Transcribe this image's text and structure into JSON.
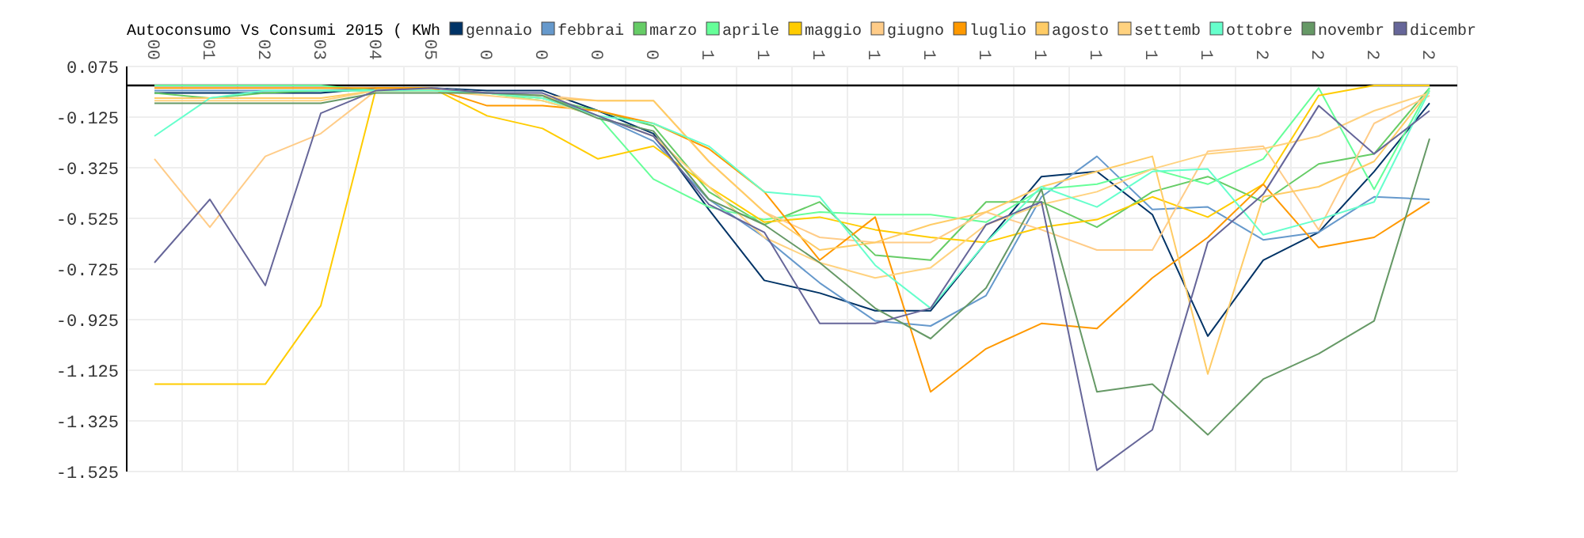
{
  "chart_data": {
    "type": "line",
    "title": "Autoconsumo Vs Consumi 2015 ( KWh",
    "categories": [
      "00",
      "01",
      "02",
      "03",
      "04",
      "05",
      "0",
      "0",
      "0",
      "0",
      "1",
      "1",
      "1",
      "1",
      "1",
      "1",
      "1",
      "1",
      "1",
      "1",
      "2",
      "2",
      "2",
      "2"
    ],
    "ylim": [
      -1.525,
      0.075
    ],
    "yticks": [
      0.075,
      -0.125,
      -0.325,
      -0.525,
      -0.725,
      -0.925,
      -1.125,
      -1.325,
      -1.525
    ],
    "grid": true,
    "legend": "top",
    "marker": "none",
    "line_style": "solid",
    "ref_lines": [
      {
        "axis": "y",
        "value": 0,
        "color": "#000000"
      }
    ],
    "series": [
      {
        "name": "gennaio",
        "color": "#003366",
        "values": [
          -0.03,
          -0.03,
          -0.03,
          -0.03,
          -0.01,
          -0.01,
          -0.02,
          -0.02,
          -0.1,
          -0.19,
          -0.49,
          -0.77,
          -0.82,
          -0.89,
          -0.89,
          -0.62,
          -0.36,
          -0.34,
          -0.51,
          -0.99,
          -0.69,
          -0.58,
          -0.34,
          -0.07
        ]
      },
      {
        "name": "febbrai",
        "color": "#6699cc",
        "values": [
          -0.02,
          -0.02,
          -0.02,
          -0.02,
          -0.01,
          -0.01,
          -0.03,
          -0.04,
          -0.12,
          -0.22,
          -0.45,
          -0.6,
          -0.78,
          -0.93,
          -0.95,
          -0.83,
          -0.44,
          -0.28,
          -0.49,
          -0.48,
          -0.61,
          -0.58,
          -0.44,
          -0.45
        ]
      },
      {
        "name": "marzo",
        "color": "#66cc66",
        "values": [
          -0.03,
          -0.05,
          -0.03,
          -0.02,
          -0.02,
          -0.02,
          -0.03,
          -0.05,
          -0.1,
          -0.16,
          -0.42,
          -0.55,
          -0.46,
          -0.67,
          -0.69,
          -0.46,
          -0.46,
          -0.56,
          -0.42,
          -0.36,
          -0.46,
          -0.31,
          -0.27,
          -0.01
        ]
      },
      {
        "name": "aprile",
        "color": "#66ff99",
        "values": [
          0,
          0,
          0,
          0,
          -0.02,
          -0.02,
          -0.03,
          -0.06,
          -0.12,
          -0.37,
          -0.48,
          -0.53,
          -0.5,
          -0.51,
          -0.51,
          -0.54,
          -0.41,
          -0.39,
          -0.33,
          -0.39,
          -0.29,
          -0.01,
          -0.41,
          -0.01
        ]
      },
      {
        "name": "maggio",
        "color": "#ffcc00",
        "values": [
          -1.18,
          -1.18,
          -1.18,
          -0.87,
          -0.01,
          -0.01,
          -0.12,
          -0.17,
          -0.29,
          -0.24,
          -0.4,
          -0.54,
          -0.52,
          -0.57,
          -0.6,
          -0.62,
          -0.56,
          -0.53,
          -0.44,
          -0.52,
          -0.39,
          -0.04,
          0,
          0
        ]
      },
      {
        "name": "giugno",
        "color": "#ffcc88",
        "values": [
          -0.29,
          -0.56,
          -0.28,
          -0.19,
          -0.02,
          -0.01,
          -0.03,
          -0.04,
          -0.06,
          -0.06,
          -0.3,
          -0.5,
          -0.6,
          -0.62,
          -0.62,
          -0.5,
          -0.57,
          -0.65,
          -0.65,
          -0.26,
          -0.24,
          -0.57,
          -0.15,
          -0.04
        ]
      },
      {
        "name": "luglio",
        "color": "#ff9900",
        "values": [
          -0.01,
          -0.01,
          -0.01,
          -0.01,
          -0.01,
          -0.01,
          -0.08,
          -0.08,
          -0.1,
          -0.15,
          -0.25,
          -0.42,
          -0.69,
          -0.52,
          -1.21,
          -1.04,
          -0.94,
          -0.96,
          -0.76,
          -0.6,
          -0.39,
          -0.64,
          -0.6,
          -0.46
        ]
      },
      {
        "name": "agosto",
        "color": "#ffcc66",
        "values": [
          -0.05,
          -0.05,
          -0.05,
          -0.05,
          -0.02,
          -0.02,
          -0.03,
          -0.05,
          -0.06,
          -0.06,
          -0.3,
          -0.5,
          -0.65,
          -0.62,
          -0.55,
          -0.5,
          -0.4,
          -0.34,
          -0.28,
          -1.14,
          -0.44,
          -0.4,
          -0.3,
          -0.02
        ]
      },
      {
        "name": "settemb",
        "color": "#ffd27f",
        "values": [
          -0.06,
          -0.06,
          -0.06,
          -0.06,
          -0.02,
          -0.02,
          -0.04,
          -0.06,
          -0.12,
          -0.2,
          -0.4,
          -0.6,
          -0.7,
          -0.76,
          -0.72,
          -0.55,
          -0.47,
          -0.42,
          -0.33,
          -0.27,
          -0.25,
          -0.2,
          -0.1,
          -0.03
        ]
      },
      {
        "name": "ottobre",
        "color": "#66ffcc",
        "values": [
          -0.2,
          -0.05,
          -0.02,
          -0.02,
          -0.02,
          -0.02,
          -0.03,
          -0.05,
          -0.12,
          -0.15,
          -0.24,
          -0.42,
          -0.44,
          -0.71,
          -0.88,
          -0.62,
          -0.4,
          -0.48,
          -0.34,
          -0.33,
          -0.59,
          -0.53,
          -0.46,
          -0.02
        ]
      },
      {
        "name": "novembr",
        "color": "#669966",
        "values": [
          -0.07,
          -0.07,
          -0.07,
          -0.07,
          -0.03,
          -0.03,
          -0.03,
          -0.04,
          -0.13,
          -0.18,
          -0.45,
          -0.55,
          -0.7,
          -0.88,
          -1.0,
          -0.8,
          -0.41,
          -1.21,
          -1.18,
          -1.38,
          -1.16,
          -1.06,
          -0.93,
          -0.21
        ]
      },
      {
        "name": "dicembr",
        "color": "#666699",
        "values": [
          -0.7,
          -0.45,
          -0.79,
          -0.11,
          -0.02,
          -0.01,
          -0.03,
          -0.03,
          -0.12,
          -0.2,
          -0.47,
          -0.58,
          -0.94,
          -0.94,
          -0.88,
          -0.55,
          -0.46,
          -1.52,
          -1.36,
          -0.62,
          -0.43,
          -0.08,
          -0.27,
          -0.1
        ]
      }
    ]
  }
}
